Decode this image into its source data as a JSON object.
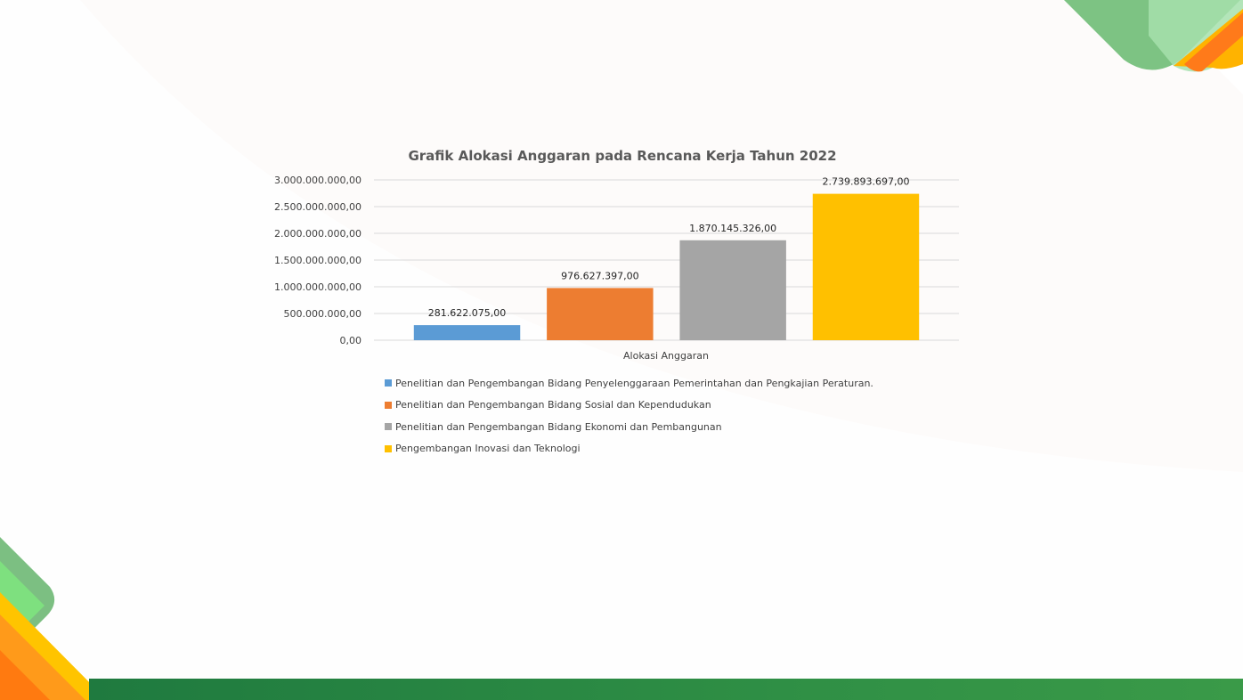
{
  "chart_data": {
    "type": "bar",
    "title": "Grafik Alokasi Anggaran pada Rencana Kerja Tahun 2022",
    "categories": [
      "Alokasi Anggaran"
    ],
    "xlabel": "Alokasi Anggaran",
    "ylabel": "",
    "ylim": [
      0,
      3000000000
    ],
    "yticks": [
      0,
      500000000,
      1000000000,
      1500000000,
      2000000000,
      2500000000,
      3000000000
    ],
    "ytick_labels": [
      "0,00",
      "500.000.000,00",
      "1.000.000.000,00",
      "1.500.000.000,00",
      "2.000.000.000,00",
      "2.500.000.000,00",
      "3.000.000.000,00"
    ],
    "grid": true,
    "legend_position": "bottom",
    "series": [
      {
        "name": "Penelitian dan Pengembangan Bidang Penyelenggaraan Pemerintahan dan  Pengkajian  Peraturan.",
        "values": [
          281622075
        ],
        "label": "281.622.075,00",
        "color": "#5b9bd5"
      },
      {
        "name": "Penelitian dan Pengembangan Bidang Sosial dan Kependudukan",
        "values": [
          976627397
        ],
        "label": "976.627.397,00",
        "color": "#ed7d31"
      },
      {
        "name": "Penelitian dan Pengembangan Bidang Ekonomi dan Pembangunan",
        "values": [
          1870145326
        ],
        "label": "1.870.145.326,00",
        "color": "#a5a5a5"
      },
      {
        "name": "Pengembangan Inovasi dan Teknologi",
        "values": [
          2739893697
        ],
        "label": "2.739.893.697,00",
        "color": "#ffc000"
      }
    ]
  }
}
